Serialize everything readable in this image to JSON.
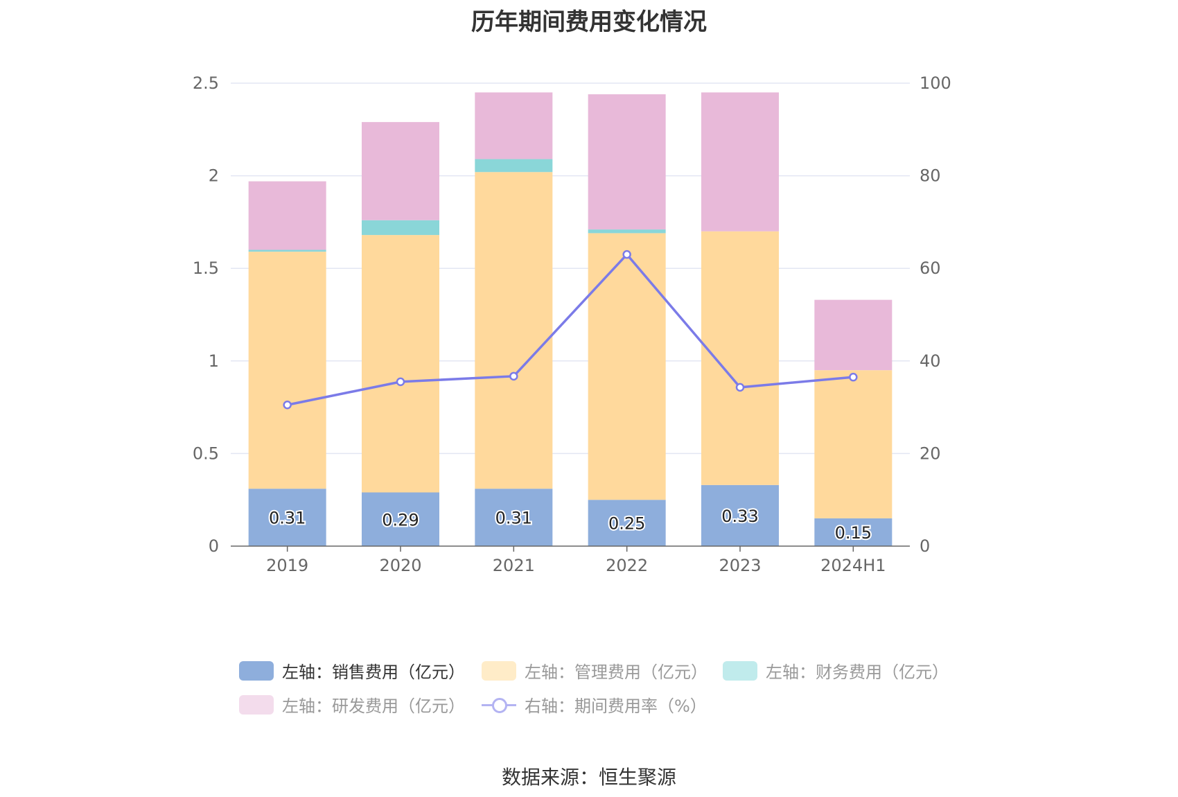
{
  "chart_data": {
    "type": "bar",
    "title": "历年期间费用变化情况",
    "categories": [
      "2019",
      "2020",
      "2021",
      "2022",
      "2023",
      "2024H1"
    ],
    "stacked": true,
    "y_left_ticks": [
      "0",
      "0.5",
      "1",
      "1.5",
      "2",
      "2.5"
    ],
    "y_right_ticks": [
      "0",
      "20",
      "40",
      "60",
      "80",
      "100"
    ],
    "ylim_left": [
      0,
      2.5
    ],
    "ylim_right": [
      0,
      100
    ],
    "grid": true,
    "legend_position": "bottom",
    "series": [
      {
        "name": "左轴：销售费用（亿元）",
        "axis": "left",
        "color": "#8eaedc",
        "values": [
          0.31,
          0.29,
          0.31,
          0.25,
          0.33,
          0.15
        ],
        "show_labels": true,
        "labels": [
          "0.31",
          "0.29",
          "0.31",
          "0.25",
          "0.33",
          "0.15"
        ]
      },
      {
        "name": "左轴：管理费用（亿元）",
        "axis": "left",
        "color": "#ffd99c",
        "values": [
          1.28,
          1.39,
          1.71,
          1.44,
          1.37,
          0.8
        ]
      },
      {
        "name": "左轴：财务费用（亿元）",
        "axis": "left",
        "color": "#8ad6d8",
        "values": [
          0.01,
          0.08,
          0.07,
          0.02,
          0.0,
          0.0
        ]
      },
      {
        "name": "左轴：研发费用（亿元）",
        "axis": "left",
        "color": "#e8b9d9",
        "values": [
          0.37,
          0.53,
          0.36,
          0.73,
          0.75,
          0.38
        ]
      },
      {
        "name": "右轴：期间费用率（%）",
        "axis": "right",
        "type": "line",
        "color": "#7b7be8",
        "values": [
          30.5,
          35.5,
          36.7,
          63.0,
          34.3,
          36.5
        ]
      }
    ],
    "legend": [
      {
        "label": "左轴：销售费用（亿元）",
        "color": "#8eaedc",
        "kind": "bar"
      },
      {
        "label": "左轴：管理费用（亿元）",
        "color": "#ffecc8",
        "kind": "bar"
      },
      {
        "label": "左轴：财务费用（亿元）",
        "color": "#c0ebec",
        "kind": "bar"
      },
      {
        "label": "左轴：研发费用（亿元）",
        "color": "#f3dcec",
        "kind": "bar"
      },
      {
        "label": "右轴：期间费用率（%）",
        "color": "#b3b3f2",
        "kind": "line"
      }
    ]
  },
  "source": "数据来源：恒生聚源"
}
